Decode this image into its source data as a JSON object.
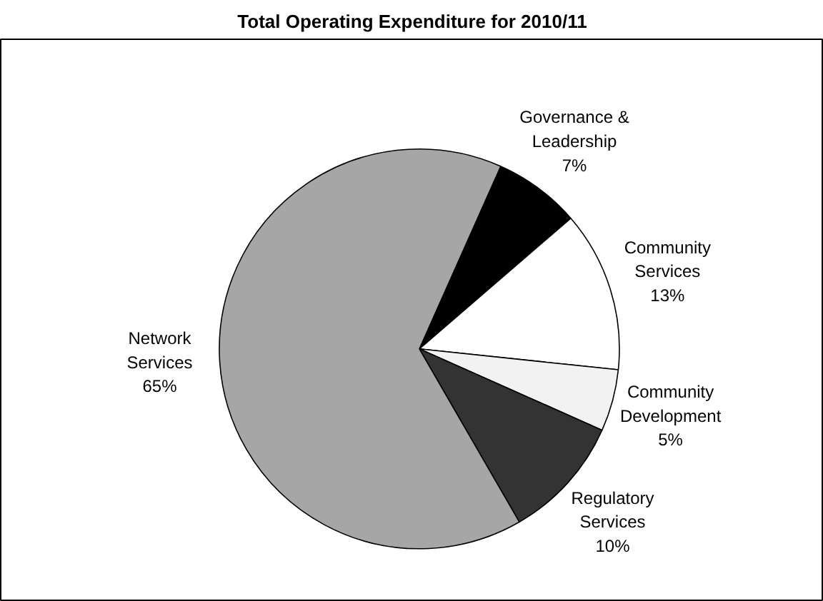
{
  "chart_data": {
    "type": "pie",
    "title": "Total Operating Expenditure for 2010/11",
    "categories": [
      "Governance &\nLeadership",
      "Community\nServices",
      "Community\nDevelopment",
      "Regulatory\nServices",
      "Network\nServices"
    ],
    "values": [
      7,
      13,
      5,
      10,
      65
    ],
    "colors": [
      "#000000",
      "#ffffff",
      "#f2f2f2",
      "#333333",
      "#a6a6a6"
    ],
    "value_labels": [
      "7%",
      "13%",
      "5%",
      "10%",
      "65%"
    ]
  }
}
